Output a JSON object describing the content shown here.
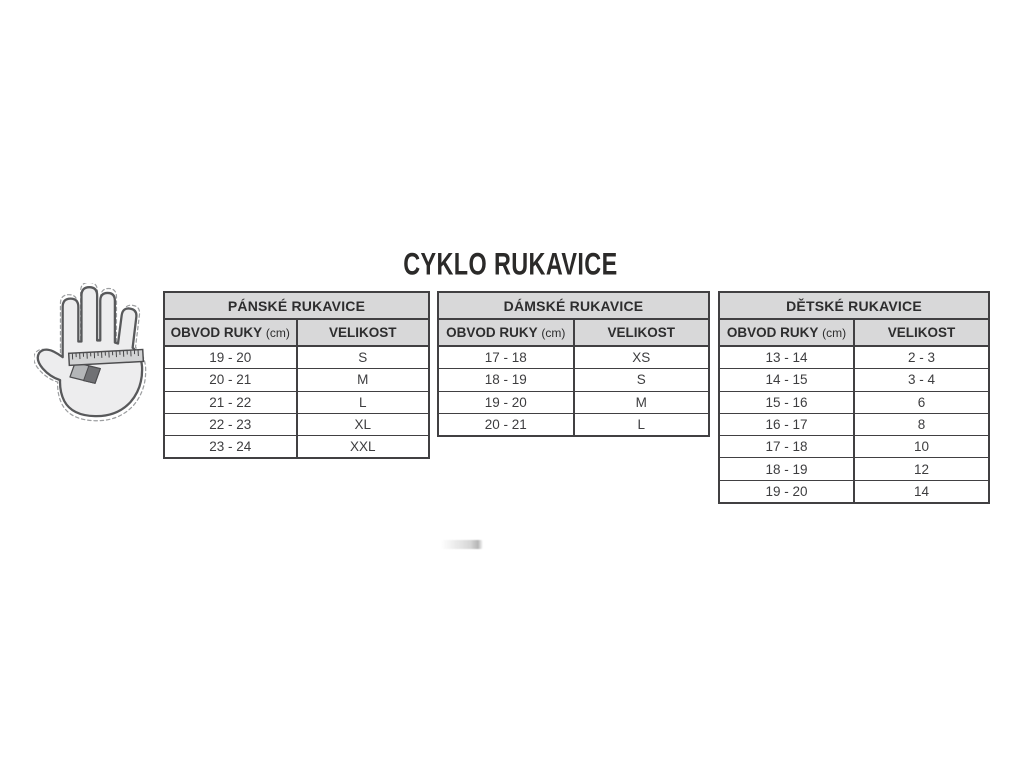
{
  "page": {
    "title": "CYKLO RUKAVICE",
    "background_color": "#ffffff",
    "title_color": "#2b2a29"
  },
  "colors": {
    "table_header_bg": "#d8d8d9",
    "table_border": "#414042",
    "body_text": "#3d3d3f",
    "hand_fill": "#ededee",
    "hand_outline": "#58595b",
    "ruler_band": "#d2d3d4",
    "tape_flap": "#b4b6b8",
    "tape_tip": "#707174"
  },
  "icons": {
    "hand_measure": "hand-with-measuring-tape-icon"
  },
  "tables": [
    {
      "id": "mens",
      "title": "PÁNSKÉ RUKAVICE",
      "col1_label": "OBVOD RUKY",
      "col1_unit": "(cm)",
      "col2_label": "VELIKOST",
      "rows": [
        [
          "19 - 20",
          "S"
        ],
        [
          "20 - 21",
          "M"
        ],
        [
          "21 - 22",
          "L"
        ],
        [
          "22 - 23",
          "XL"
        ],
        [
          "23 - 24",
          "XXL"
        ]
      ]
    },
    {
      "id": "womens",
      "title": "DÁMSKÉ RUKAVICE",
      "col1_label": "OBVOD RUKY",
      "col1_unit": "(cm)",
      "col2_label": "VELIKOST",
      "rows": [
        [
          "17 - 18",
          "XS"
        ],
        [
          "18 - 19",
          "S"
        ],
        [
          "19 - 20",
          "M"
        ],
        [
          "20 - 21",
          "L"
        ]
      ]
    },
    {
      "id": "kids",
      "title": "DĚTSKÉ RUKAVICE",
      "col1_label": "OBVOD RUKY",
      "col1_unit": "(cm)",
      "col2_label": "VELIKOST",
      "rows": [
        [
          "13 - 14",
          "2 - 3"
        ],
        [
          "14 - 15",
          "3 - 4"
        ],
        [
          "15 - 16",
          "6"
        ],
        [
          "16 - 17",
          "8"
        ],
        [
          "17 - 18",
          "10"
        ],
        [
          "18 - 19",
          "12"
        ],
        [
          "19 - 20",
          "14"
        ]
      ]
    }
  ]
}
